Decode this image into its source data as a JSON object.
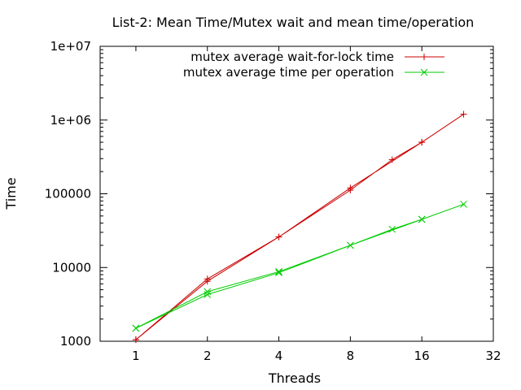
{
  "chart_data": {
    "type": "line",
    "title": "List-2: Mean Time/Mutex wait and mean time/operation",
    "xlabel": "Threads",
    "ylabel": "Time",
    "x_scale": "log2",
    "y_scale": "log10",
    "xlim": [
      0.707,
      32
    ],
    "ylim": [
      1000,
      10000000
    ],
    "x_ticks": [
      1,
      2,
      4,
      8,
      16,
      32
    ],
    "x_tick_labels": [
      "1",
      "2",
      "4",
      "8",
      "16",
      "32"
    ],
    "y_ticks": [
      1000,
      10000,
      100000,
      1000000,
      10000000
    ],
    "y_tick_labels": [
      "1000",
      "10000",
      "100000",
      "1e+06",
      "1e+07"
    ],
    "grid": false,
    "legend_position": "top-right",
    "series": [
      {
        "name": "mutex average wait-for-lock time",
        "color": "#cc0000",
        "marker": "plus",
        "x": [
          1,
          2,
          4,
          8,
          16,
          24,
          16,
          12,
          8,
          4,
          2,
          1
        ],
        "y": [
          1050,
          7000,
          26000,
          120000,
          500000,
          1200000,
          500000,
          290000,
          112000,
          26000,
          6500,
          1050
        ]
      },
      {
        "name": "mutex average time per operation",
        "color": "#00cc00",
        "marker": "cross",
        "x": [
          1,
          2,
          4,
          8,
          16,
          24,
          16,
          12,
          8,
          4,
          2,
          1
        ],
        "y": [
          1500,
          4700,
          8800,
          20000,
          45000,
          72000,
          45000,
          33000,
          20000,
          8500,
          4300,
          1500
        ]
      }
    ]
  }
}
